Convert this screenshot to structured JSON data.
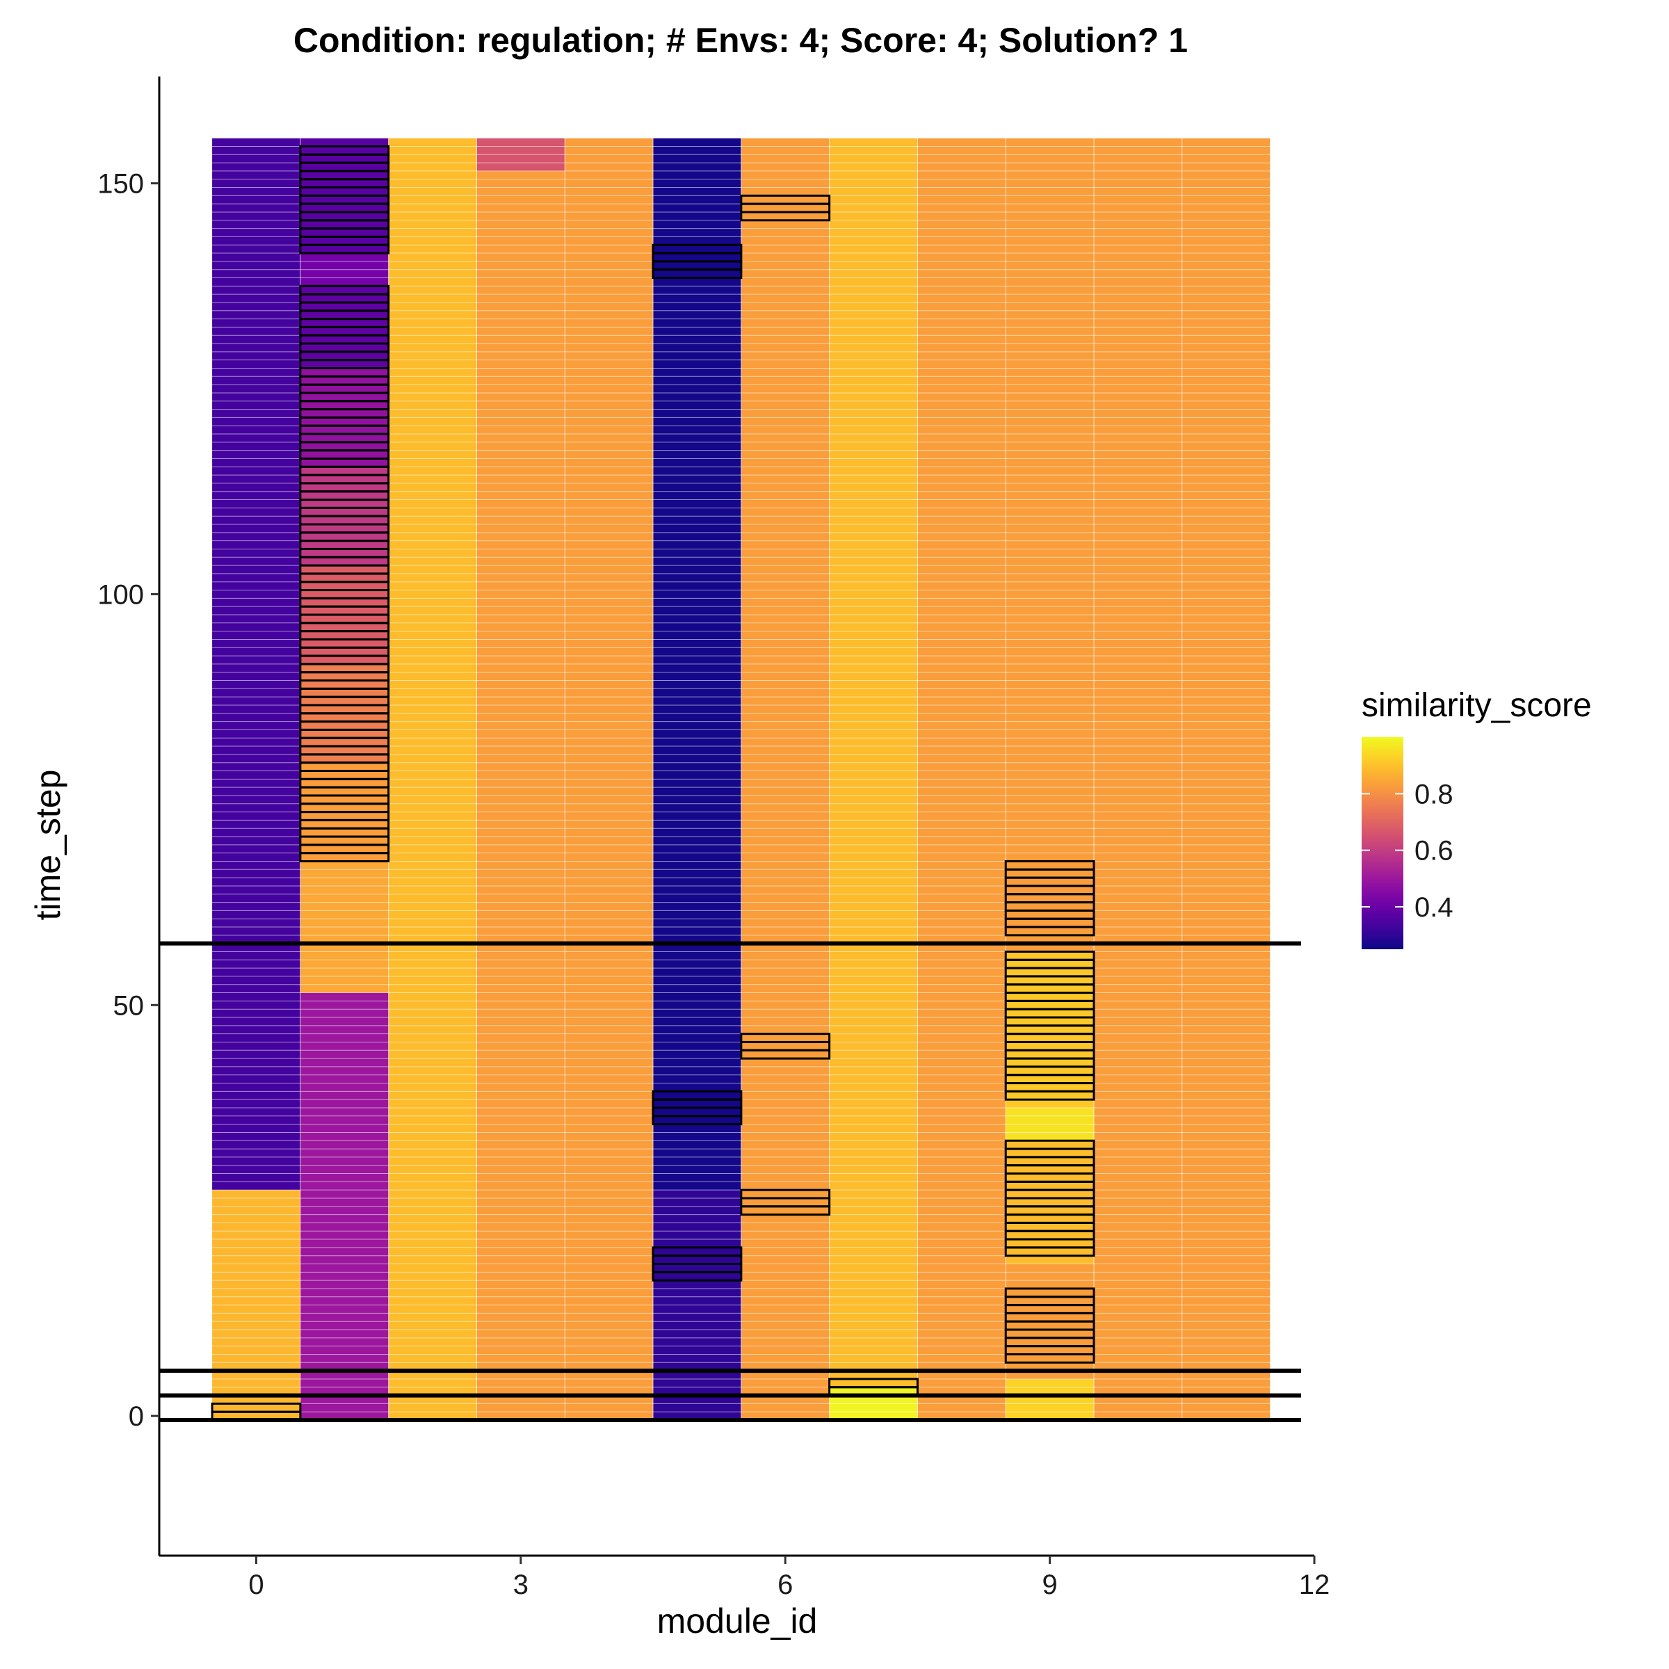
{
  "chart_data": {
    "type": "heatmap",
    "title": "Condition: regulation; # Envs: 4; Score: 4; Solution? 1",
    "xlabel": "module_id",
    "ylabel": "time_step",
    "xlim": [
      -1.1,
      12
    ],
    "ylim": [
      -17,
      163
    ],
    "x_ticks": [
      0,
      3,
      6,
      9,
      12
    ],
    "y_ticks": [
      0,
      50,
      100,
      150
    ],
    "grid": false,
    "x_categories": [
      0,
      1,
      2,
      3,
      4,
      5,
      6,
      7,
      8,
      9,
      10,
      11
    ],
    "time_steps": [
      0,
      155
    ],
    "legend": {
      "title": "similarity_score",
      "placement": "right",
      "range": [
        0.25,
        1.0
      ],
      "ticks": [
        "0.4",
        "0.6",
        "0.8"
      ],
      "palette": "plasma"
    },
    "cells": [
      {
        "module_id": 0,
        "time_from": 0,
        "time_to": 27,
        "score": 0.88
      },
      {
        "module_id": 0,
        "time_from": 28,
        "time_to": 155,
        "score": 0.33
      },
      {
        "module_id": 1,
        "time_from": 0,
        "time_to": 51,
        "score": 0.5
      },
      {
        "module_id": 1,
        "time_from": 52,
        "time_to": 67,
        "score": 0.85
      },
      {
        "module_id": 1,
        "time_from": 68,
        "time_to": 79,
        "score": 0.83
      },
      {
        "module_id": 1,
        "time_from": 80,
        "time_to": 91,
        "score": 0.76
      },
      {
        "module_id": 1,
        "time_from": 92,
        "time_to": 103,
        "score": 0.68
      },
      {
        "module_id": 1,
        "time_from": 104,
        "time_to": 115,
        "score": 0.59
      },
      {
        "module_id": 1,
        "time_from": 116,
        "time_to": 127,
        "score": 0.48
      },
      {
        "module_id": 1,
        "time_from": 128,
        "time_to": 137,
        "score": 0.38
      },
      {
        "module_id": 1,
        "time_from": 138,
        "time_to": 141,
        "score": 0.42
      },
      {
        "module_id": 1,
        "time_from": 142,
        "time_to": 155,
        "score": 0.37
      },
      {
        "module_id": 2,
        "time_from": 0,
        "time_to": 155,
        "score": 0.89
      },
      {
        "module_id": 3,
        "time_from": 0,
        "time_to": 151,
        "score": 0.83
      },
      {
        "module_id": 3,
        "time_from": 152,
        "time_to": 155,
        "score": 0.66
      },
      {
        "module_id": 4,
        "time_from": 0,
        "time_to": 155,
        "score": 0.83
      },
      {
        "module_id": 5,
        "time_from": 0,
        "time_to": 27,
        "score": 0.3
      },
      {
        "module_id": 5,
        "time_from": 28,
        "time_to": 155,
        "score": 0.26
      },
      {
        "module_id": 6,
        "time_from": 0,
        "time_to": 155,
        "score": 0.83
      },
      {
        "module_id": 7,
        "time_from": 0,
        "time_to": 3,
        "score": 0.99
      },
      {
        "module_id": 7,
        "time_from": 4,
        "time_to": 155,
        "score": 0.89
      },
      {
        "module_id": 8,
        "time_from": 0,
        "time_to": 155,
        "score": 0.83
      },
      {
        "module_id": 9,
        "time_from": 0,
        "time_to": 4,
        "score": 0.93
      },
      {
        "module_id": 9,
        "time_from": 5,
        "time_to": 56,
        "score": 0.83
      },
      {
        "module_id": 9,
        "time_from": 19,
        "time_to": 33,
        "score": 0.89
      },
      {
        "module_id": 9,
        "time_from": 34,
        "time_to": 37,
        "score": 0.96
      },
      {
        "module_id": 9,
        "time_from": 38,
        "time_to": 56,
        "score": 0.91
      },
      {
        "module_id": 9,
        "time_from": 57,
        "time_to": 155,
        "score": 0.83
      },
      {
        "module_id": 10,
        "time_from": 0,
        "time_to": 155,
        "score": 0.83
      },
      {
        "module_id": 11,
        "time_from": 0,
        "time_to": 155,
        "score": 0.83
      }
    ],
    "highlight_boxes": [
      {
        "module_id": 0,
        "time_from": 0,
        "time_to": 1
      },
      {
        "module_id": 1,
        "time_from": 68,
        "time_to": 137
      },
      {
        "module_id": 1,
        "time_from": 142,
        "time_to": 154
      },
      {
        "module_id": 5,
        "time_from": 17,
        "time_to": 20
      },
      {
        "module_id": 5,
        "time_from": 36,
        "time_to": 39
      },
      {
        "module_id": 5,
        "time_from": 139,
        "time_to": 142
      },
      {
        "module_id": 6,
        "time_from": 25,
        "time_to": 27
      },
      {
        "module_id": 6,
        "time_from": 44,
        "time_to": 46
      },
      {
        "module_id": 6,
        "time_from": 146,
        "time_to": 148
      },
      {
        "module_id": 7,
        "time_from": 3,
        "time_to": 4
      },
      {
        "module_id": 9,
        "time_from": 7,
        "time_to": 15
      },
      {
        "module_id": 9,
        "time_from": 20,
        "time_to": 33
      },
      {
        "module_id": 9,
        "time_from": 39,
        "time_to": 56
      },
      {
        "module_id": 9,
        "time_from": 59,
        "time_to": 67
      }
    ],
    "hlines": [
      -0.5,
      2.5,
      5.5,
      57.5
    ]
  }
}
